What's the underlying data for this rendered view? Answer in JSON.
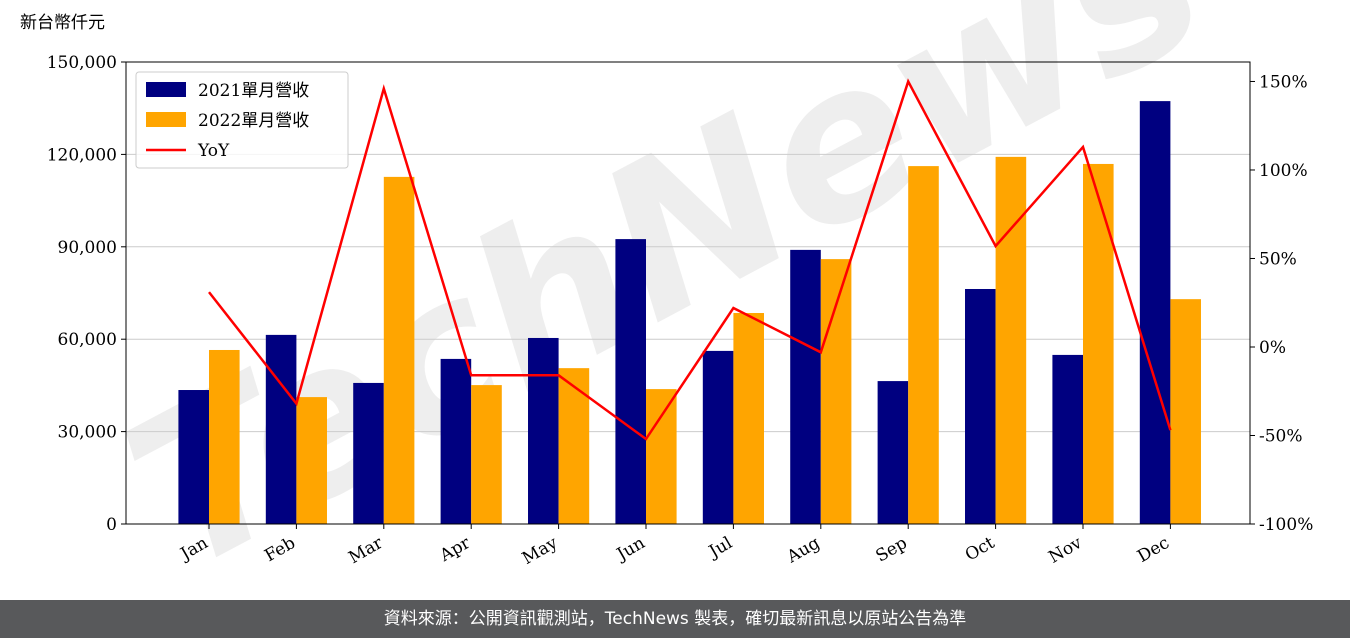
{
  "chart_data": {
    "type": "bar",
    "y_label": "新台幣仟元",
    "watermark": "TechNews",
    "categories": [
      "Jan",
      "Feb",
      "Mar",
      "Apr",
      "May",
      "Jun",
      "Jul",
      "Aug",
      "Sep",
      "Oct",
      "Nov",
      "Dec"
    ],
    "series": [
      {
        "name": "2021單月營收",
        "color": "#000080",
        "values": [
          43500,
          61400,
          45800,
          53600,
          60400,
          92500,
          56200,
          89000,
          46400,
          76300,
          54900,
          137300
        ]
      },
      {
        "name": "2022單月營收",
        "color": "#ffa500",
        "values": [
          56500,
          41200,
          112700,
          45100,
          50600,
          43800,
          68500,
          86000,
          116200,
          119200,
          116900,
          73000
        ]
      },
      {
        "name": "YoY",
        "type": "line",
        "axis": "y2",
        "color": "#ff0000",
        "values": [
          31,
          -32,
          146,
          -16,
          -16,
          -52,
          22,
          -3,
          150,
          57,
          113,
          -47
        ]
      }
    ],
    "ylim": [
      0,
      150000
    ],
    "yticks": [
      0,
      {
        "value": 30000,
        "label": "30,000"
      },
      {
        "value": 60000,
        "label": "60,000"
      },
      {
        "value": 90000,
        "label": "90,000"
      },
      {
        "value": 120000,
        "label": "120,000"
      },
      {
        "value": 150000,
        "label": "150,000"
      }
    ],
    "y2lim": [
      -100,
      161
    ],
    "y2ticks": [
      {
        "value": -100,
        "label": "-100%"
      },
      {
        "value": -50,
        "label": "-50%"
      },
      {
        "value": 0,
        "label": "0%"
      },
      {
        "value": 50,
        "label": "50%"
      },
      {
        "value": 100,
        "label": "100%"
      },
      {
        "value": 150,
        "label": "150%"
      }
    ],
    "grid": true,
    "legend": "upper left",
    "footer": "資料來源：公開資訊觀測站，TechNews 製表，確切最新訊息以原站公告為準"
  }
}
